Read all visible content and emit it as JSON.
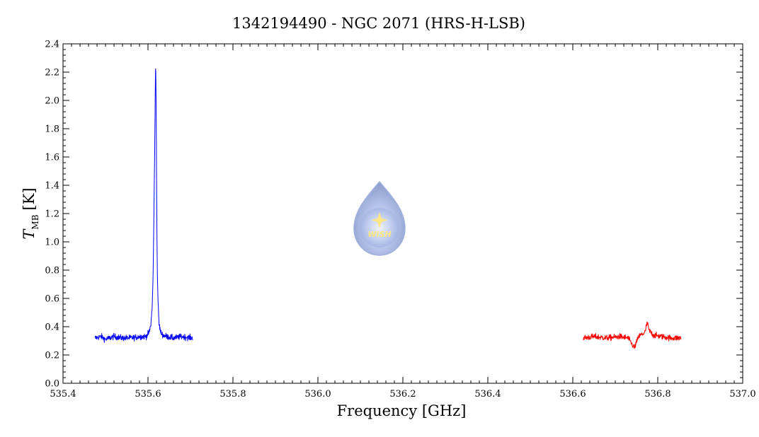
{
  "chart_data": {
    "type": "line",
    "title": "1342194490 - NGC 2071 (HRS-H-LSB)",
    "xlabel": "Frequency [GHz]",
    "ylabel": {
      "symbol": "T",
      "subscript": "MB",
      "unit": "[K]"
    },
    "xlim": [
      535.4,
      537.0
    ],
    "ylim": [
      0.0,
      2.4
    ],
    "x_ticks": [
      "535.4",
      "535.6",
      "535.8",
      "536.0",
      "536.2",
      "536.4",
      "536.6",
      "536.8",
      "537.0"
    ],
    "y_ticks": [
      "0.0",
      "0.2",
      "0.4",
      "0.6",
      "0.8",
      "1.0",
      "1.2",
      "1.4",
      "1.6",
      "1.8",
      "2.0",
      "2.2",
      "2.4"
    ],
    "grid": false,
    "series": [
      {
        "color": "#0000ff",
        "x": [
          535.475,
          535.49,
          535.5,
          535.52,
          535.54,
          535.56,
          535.58,
          535.595,
          535.603,
          535.607,
          535.61,
          535.612,
          535.614,
          535.616,
          535.617,
          535.618,
          535.619,
          535.62,
          535.621,
          535.622,
          535.624,
          535.626,
          535.63,
          535.635,
          535.645,
          535.66,
          535.68,
          535.705
        ],
        "y": [
          0.32,
          0.33,
          0.31,
          0.33,
          0.32,
          0.32,
          0.33,
          0.33,
          0.36,
          0.42,
          0.55,
          0.75,
          1.2,
          1.7,
          2.02,
          2.28,
          2.05,
          1.55,
          1.1,
          0.78,
          0.55,
          0.42,
          0.36,
          0.34,
          0.33,
          0.32,
          0.33,
          0.32
        ],
        "noise": 0.02
      },
      {
        "color": "#ff0000",
        "x": [
          536.625,
          536.65,
          536.68,
          536.71,
          536.73,
          536.745,
          536.755,
          536.77,
          536.775,
          536.78,
          536.79,
          536.81,
          536.83,
          536.855
        ],
        "y": [
          0.32,
          0.33,
          0.32,
          0.33,
          0.32,
          0.25,
          0.33,
          0.36,
          0.43,
          0.37,
          0.34,
          0.33,
          0.32,
          0.32
        ],
        "noise": 0.02
      }
    ]
  },
  "watermark": {
    "text": "WISH",
    "colors": {
      "drop": "#8ea3d6",
      "glow": "#dfe8ff",
      "star": "#ffe680"
    }
  }
}
